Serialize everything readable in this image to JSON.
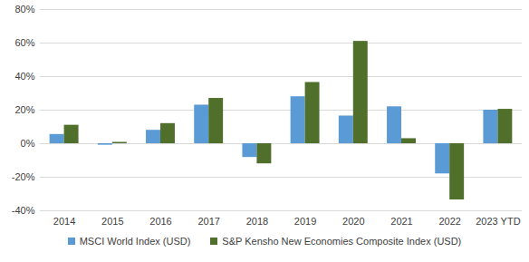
{
  "chart_data": {
    "type": "bar",
    "categories": [
      "2014",
      "2015",
      "2016",
      "2017",
      "2018",
      "2019",
      "2020",
      "2021",
      "2022",
      "2023 YTD"
    ],
    "series": [
      {
        "name": "MSCI World Index (USD)",
        "color": "#5b9bd5",
        "values": [
          5.5,
          -0.9,
          8,
          23,
          -8.2,
          28,
          16.5,
          22,
          -18,
          20
        ]
      },
      {
        "name": "S&P Kensho New Economies Composite Index (USD)",
        "color": "#4f6f2b",
        "values": [
          11,
          0.8,
          12,
          27,
          -12,
          36.5,
          61,
          3,
          -33.5,
          20.5
        ]
      }
    ],
    "ylim": [
      -40,
      80
    ],
    "yticks": [
      {
        "value": -40,
        "label": "-40%"
      },
      {
        "value": -20,
        "label": "-20%"
      },
      {
        "value": 0,
        "label": "0%"
      },
      {
        "value": 20,
        "label": "20%"
      },
      {
        "value": 40,
        "label": "40%"
      },
      {
        "value": 60,
        "label": "60%"
      },
      {
        "value": 80,
        "label": "80%"
      }
    ],
    "grid": true,
    "legend": "bottom"
  }
}
